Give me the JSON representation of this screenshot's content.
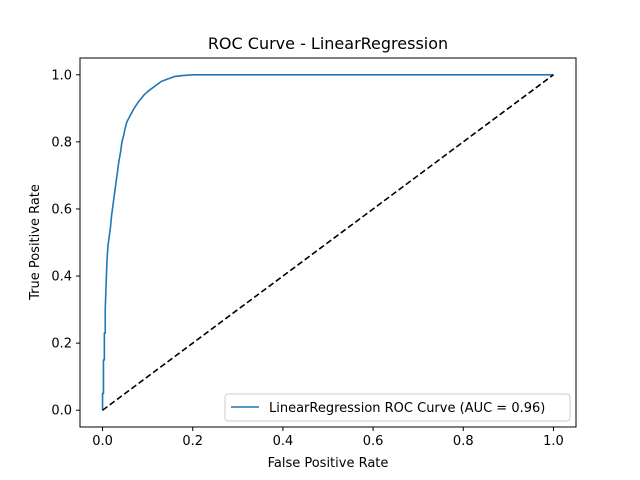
{
  "chart_data": {
    "type": "line",
    "title": "ROC Curve - LinearRegression",
    "xlabel": "False Positive Rate",
    "ylabel": "True Positive Rate",
    "xlim": [
      -0.05,
      1.05
    ],
    "ylim": [
      -0.05,
      1.05
    ],
    "xticks": [
      "0.0",
      "0.2",
      "0.4",
      "0.6",
      "0.8",
      "1.0"
    ],
    "yticks": [
      "0.0",
      "0.2",
      "0.4",
      "0.6",
      "0.8",
      "1.0"
    ],
    "grid": false,
    "legend_position": "lower-right",
    "series": [
      {
        "name": "LinearRegression ROC Curve (AUC = 0.96)",
        "color": "#1f77b4",
        "style": "solid",
        "x": [
          0.0,
          0.0,
          0.002,
          0.002,
          0.004,
          0.004,
          0.006,
          0.006,
          0.008,
          0.01,
          0.012,
          0.015,
          0.018,
          0.02,
          0.023,
          0.026,
          0.03,
          0.033,
          0.036,
          0.04,
          0.043,
          0.047,
          0.05,
          0.054,
          0.058,
          0.062,
          0.066,
          0.07,
          0.075,
          0.08,
          0.086,
          0.092,
          0.1,
          0.11,
          0.12,
          0.13,
          0.14,
          0.15,
          0.16,
          0.18,
          0.2,
          0.25,
          0.3,
          0.4,
          0.5,
          0.6,
          0.7,
          0.8,
          0.9,
          1.0
        ],
        "y": [
          0.0,
          0.05,
          0.05,
          0.15,
          0.15,
          0.23,
          0.23,
          0.3,
          0.38,
          0.45,
          0.49,
          0.52,
          0.55,
          0.58,
          0.61,
          0.64,
          0.68,
          0.71,
          0.74,
          0.77,
          0.8,
          0.82,
          0.84,
          0.86,
          0.87,
          0.88,
          0.89,
          0.9,
          0.91,
          0.92,
          0.93,
          0.94,
          0.95,
          0.96,
          0.97,
          0.98,
          0.985,
          0.99,
          0.995,
          0.998,
          1.0,
          1.0,
          1.0,
          1.0,
          1.0,
          1.0,
          1.0,
          1.0,
          1.0,
          1.0
        ]
      },
      {
        "name": "",
        "color": "#000000",
        "style": "dashed",
        "x": [
          0.0,
          1.0
        ],
        "y": [
          0.0,
          1.0
        ]
      }
    ]
  }
}
